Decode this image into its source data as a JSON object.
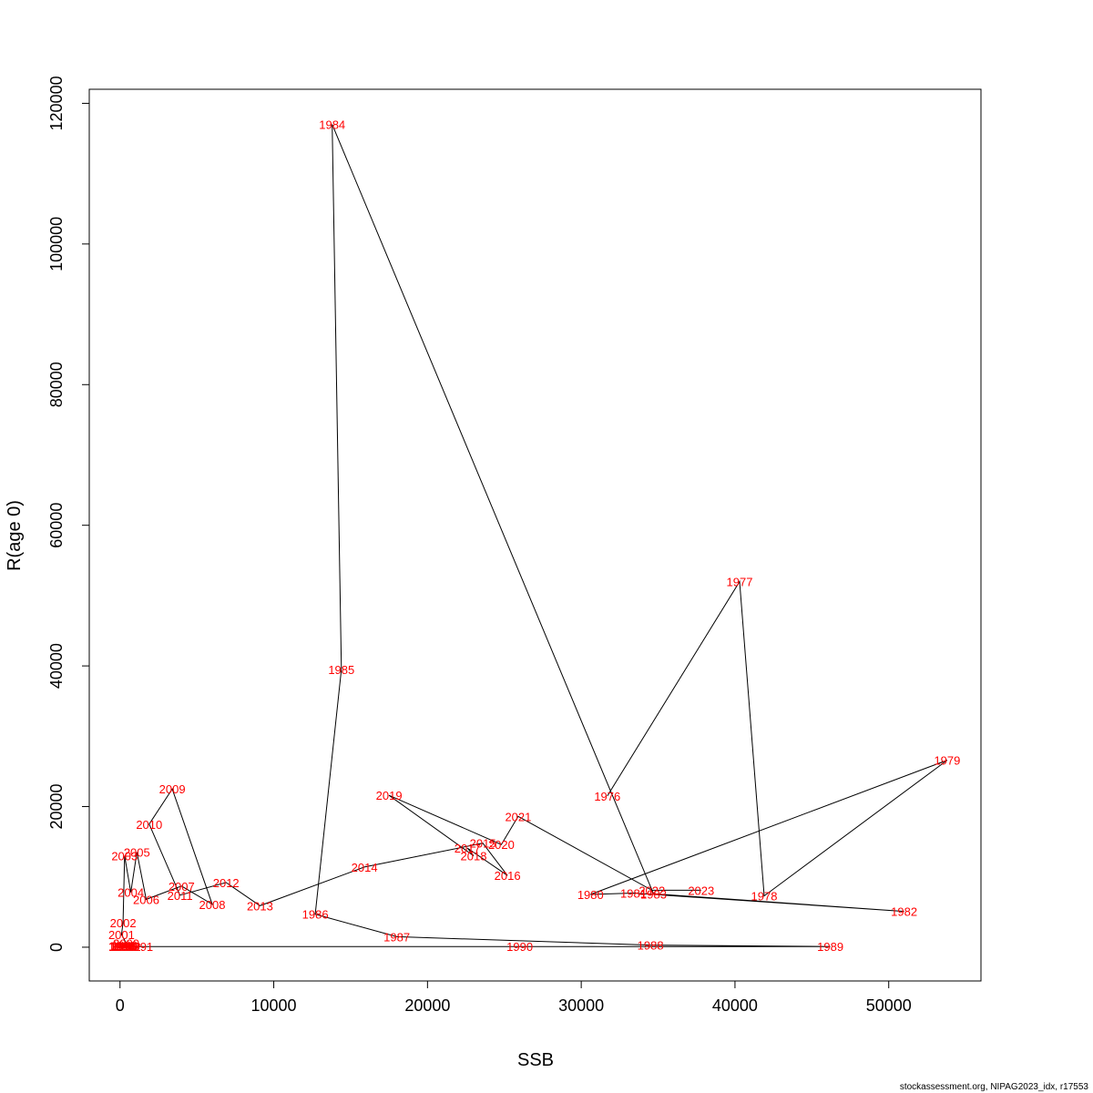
{
  "chart_data": {
    "type": "line",
    "xlabel": "SSB",
    "ylabel": "R(age 0)",
    "xlim": [
      -2000,
      56000
    ],
    "ylim": [
      -4800,
      122000
    ],
    "x_ticks": [
      0,
      10000,
      20000,
      30000,
      40000,
      50000
    ],
    "y_ticks": [
      0,
      20000,
      40000,
      60000,
      80000,
      100000,
      120000
    ],
    "grid": false,
    "colors": {
      "line": "#000000",
      "labels": "#ff0000"
    },
    "points": [
      {
        "year": "1976",
        "x": 31700,
        "y": 21500
      },
      {
        "year": "1977",
        "x": 40300,
        "y": 52000
      },
      {
        "year": "1978",
        "x": 41900,
        "y": 7300
      },
      {
        "year": "1979",
        "x": 53800,
        "y": 26600
      },
      {
        "year": "1980",
        "x": 30600,
        "y": 7500
      },
      {
        "year": "1981",
        "x": 33400,
        "y": 7700
      },
      {
        "year": "1982",
        "x": 51000,
        "y": 5100
      },
      {
        "year": "1983",
        "x": 34700,
        "y": 7600
      },
      {
        "year": "1984",
        "x": 13800,
        "y": 117000
      },
      {
        "year": "1985",
        "x": 14400,
        "y": 39500
      },
      {
        "year": "1986",
        "x": 12700,
        "y": 4700
      },
      {
        "year": "1987",
        "x": 18000,
        "y": 1500
      },
      {
        "year": "1988",
        "x": 34500,
        "y": 300
      },
      {
        "year": "1989",
        "x": 46200,
        "y": 100
      },
      {
        "year": "1990",
        "x": 26000,
        "y": 100
      },
      {
        "year": "1991",
        "x": 1300,
        "y": 100
      },
      {
        "year": "1992",
        "x": 500,
        "y": 100
      },
      {
        "year": "1993",
        "x": 300,
        "y": 100
      },
      {
        "year": "1994",
        "x": 100,
        "y": 100
      },
      {
        "year": "1995",
        "x": 200,
        "y": 100
      },
      {
        "year": "1996",
        "x": 400,
        "y": 100
      },
      {
        "year": "1997",
        "x": 100,
        "y": 200
      },
      {
        "year": "1998",
        "x": 200,
        "y": 200
      },
      {
        "year": "1999",
        "x": 300,
        "y": 300
      },
      {
        "year": "2000",
        "x": 400,
        "y": 600
      },
      {
        "year": "2001",
        "x": 100,
        "y": 1800
      },
      {
        "year": "2002",
        "x": 200,
        "y": 3500
      },
      {
        "year": "2003",
        "x": 300,
        "y": 13000
      },
      {
        "year": "2004",
        "x": 700,
        "y": 7800
      },
      {
        "year": "2005",
        "x": 1100,
        "y": 13500
      },
      {
        "year": "2006",
        "x": 1700,
        "y": 6800
      },
      {
        "year": "2007",
        "x": 4000,
        "y": 8700
      },
      {
        "year": "2008",
        "x": 6000,
        "y": 6100
      },
      {
        "year": "2009",
        "x": 3400,
        "y": 22500
      },
      {
        "year": "2010",
        "x": 1900,
        "y": 17500
      },
      {
        "year": "2011",
        "x": 3900,
        "y": 7400
      },
      {
        "year": "2012",
        "x": 6900,
        "y": 9200
      },
      {
        "year": "2013",
        "x": 9100,
        "y": 5900
      },
      {
        "year": "2014",
        "x": 15900,
        "y": 11400
      },
      {
        "year": "2015",
        "x": 23600,
        "y": 14800
      },
      {
        "year": "2016",
        "x": 25200,
        "y": 10200
      },
      {
        "year": "2017",
        "x": 22600,
        "y": 14100
      },
      {
        "year": "2018",
        "x": 23000,
        "y": 13000
      },
      {
        "year": "2019",
        "x": 17500,
        "y": 21600
      },
      {
        "year": "2020",
        "x": 24800,
        "y": 14600
      },
      {
        "year": "2021",
        "x": 25900,
        "y": 18600
      },
      {
        "year": "2022",
        "x": 34600,
        "y": 8100
      },
      {
        "year": "2023",
        "x": 37800,
        "y": 8100
      }
    ]
  },
  "footer": "stockassessment.org, NIPAG2023_idx, r17553"
}
